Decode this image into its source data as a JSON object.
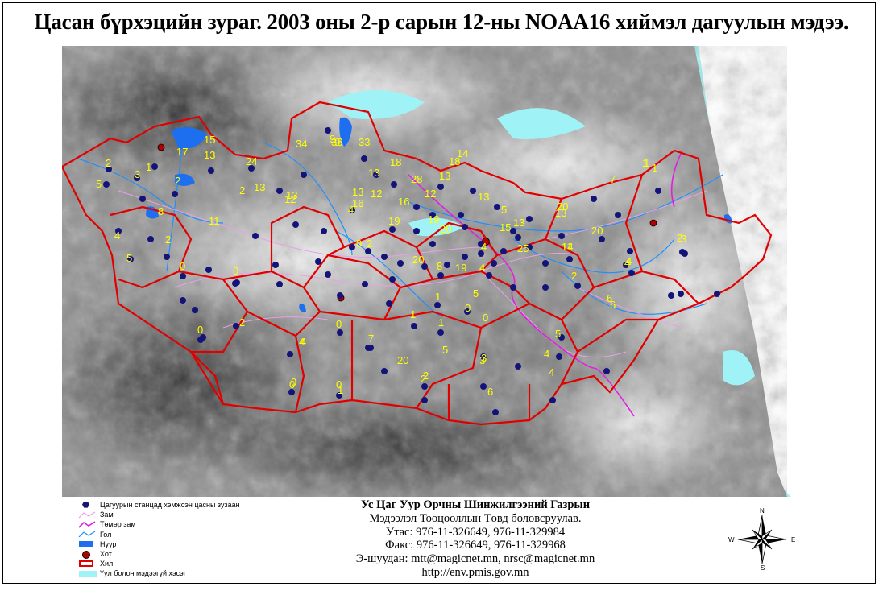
{
  "title": "Цасан бүрхэцийн зураг. 2003 оны 2-р сарын 12-ны NOAA16 хиймэл дагуулын мэдээ.",
  "colors": {
    "boundary": "#e00000",
    "station": "#141478",
    "snow_value": "#ffff00",
    "road": "#e8a0e8",
    "railway": "#e020e0",
    "river": "#1e90ff",
    "lake": "#1e6ff0",
    "city": "#b00000",
    "nodata": "#9ff3f6"
  },
  "legend": {
    "items": [
      {
        "icon": "station-icon",
        "label": "Цагуурын станцад хэмжсэн цасны зузаан"
      },
      {
        "icon": "road-icon",
        "label": "Зам"
      },
      {
        "icon": "railway-icon",
        "label": "Төмөр зам"
      },
      {
        "icon": "river-icon",
        "label": "Гол"
      },
      {
        "icon": "lake-icon",
        "label": "Нуур"
      },
      {
        "icon": "city-icon",
        "label": "Хот"
      },
      {
        "icon": "boundary-icon",
        "label": "Хил"
      },
      {
        "icon": "nodata-icon",
        "label": "Үүл болон мэдээгүй хэсэг"
      }
    ]
  },
  "organization": {
    "line1": "Ус Цаг Уур Орчны Шинжилгээний Газрын",
    "line2": "Мэдээлэл Тооцооллын Төвд боловсруулав.",
    "phone": "Утас: 976-11-326649, 976-11-329984",
    "fax": "Факс: 976-11-326649, 976-11-329968",
    "email": "Э-шуудан: mtt@magicnet.mn, nrsc@magicnet.mn",
    "website": "http://env.pmis.gov.mn"
  },
  "compass": {
    "north": "N",
    "south": "S",
    "east": "E",
    "west": "W"
  },
  "snow_depth_labels": [
    "2",
    "5",
    "1",
    "3",
    "2",
    "8",
    "5",
    "4",
    "2",
    "0",
    "0",
    "0",
    "2",
    "4",
    "0",
    "0",
    "17",
    "13",
    "24",
    "11",
    "13",
    "9",
    "15",
    "13",
    "12",
    "34",
    "36",
    "33",
    "13",
    "2",
    "13",
    "18",
    "28",
    "12",
    "12",
    "16",
    "4",
    "19",
    "13",
    "20",
    "18",
    "14",
    "1",
    "7",
    "13",
    "0",
    "2",
    "5",
    "11",
    "3",
    "6",
    "1",
    "1",
    "20",
    "19",
    "8",
    "19",
    "4",
    "4",
    "15",
    "5",
    "25",
    "14",
    "13",
    "20",
    "20",
    "6",
    "9",
    "1",
    "4",
    "5",
    "2",
    "16",
    "0",
    "1",
    "0",
    "0",
    "7",
    "4",
    "20",
    "5",
    "3",
    "2",
    "4",
    "6",
    "2",
    "4",
    "0",
    "1",
    "13",
    "1",
    "2",
    "4",
    "3"
  ]
}
